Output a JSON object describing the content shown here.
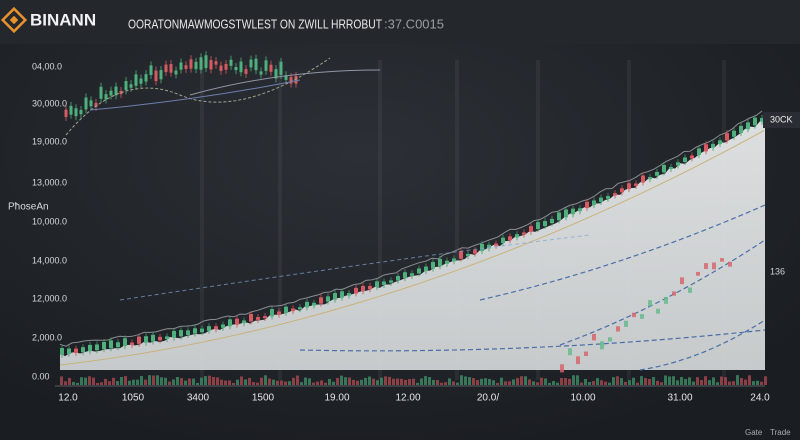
{
  "header": {
    "brand": "BINANN",
    "headline": "OORATONMAWMOGSTWLEST ON ZWILL HRROBUT",
    "code": ":37.C0015"
  },
  "chart": {
    "axis_title": "PħoseAn",
    "y_labels": [
      "04,00.0",
      "30,000.0",
      "19,000.0",
      "13,000.0",
      "10,000.0",
      "14,000.0",
      "12,000.0",
      "2,000.0",
      "0.00"
    ],
    "x_labels": [
      "12.0",
      "1050",
      "3400",
      "1500",
      "19.00",
      "12.00",
      "20.0/",
      "10.00",
      "31.00",
      "24.0"
    ],
    "price_tag": "30CK",
    "side_label": "136"
  },
  "footer": {
    "left": "Gate",
    "right": "Trade"
  }
}
